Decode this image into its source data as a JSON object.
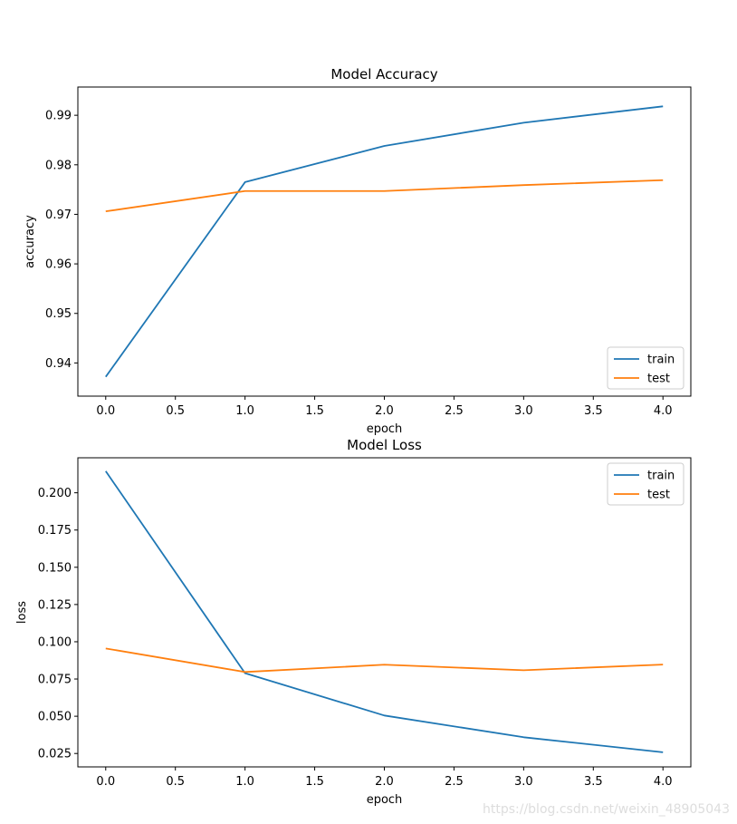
{
  "colors": {
    "train": "#1f77b4",
    "test": "#ff7f0e",
    "axis": "#000000",
    "background": "#ffffff"
  },
  "watermark": "https://blog.csdn.net/weixin_48905043",
  "chart_data": [
    {
      "type": "line",
      "title": "Model Accuracy",
      "xlabel": "epoch",
      "ylabel": "accuracy",
      "x": [
        0,
        1,
        2,
        3,
        4
      ],
      "xlim": [
        -0.2,
        4.2
      ],
      "ylim": [
        0.9333,
        0.9957
      ],
      "xticks": [
        0.0,
        0.5,
        1.0,
        1.5,
        2.0,
        2.5,
        3.0,
        3.5,
        4.0
      ],
      "xtick_labels": [
        "0.0",
        "0.5",
        "1.0",
        "1.5",
        "2.0",
        "2.5",
        "3.0",
        "3.5",
        "4.0"
      ],
      "yticks": [
        0.94,
        0.95,
        0.96,
        0.97,
        0.98,
        0.99
      ],
      "ytick_labels": [
        "0.94",
        "0.95",
        "0.96",
        "0.97",
        "0.98",
        "0.99"
      ],
      "series": [
        {
          "name": "train",
          "values": [
            0.9372,
            0.9765,
            0.9838,
            0.9885,
            0.9918
          ]
        },
        {
          "name": "test",
          "values": [
            0.9706,
            0.9747,
            0.9747,
            0.9759,
            0.9769
          ]
        }
      ],
      "legend": {
        "position": "lower right",
        "entries": [
          "train",
          "test"
        ]
      },
      "grid": false
    },
    {
      "type": "line",
      "title": "Model Loss",
      "xlabel": "epoch",
      "ylabel": "loss",
      "x": [
        0,
        1,
        2,
        3,
        4
      ],
      "xlim": [
        -0.2,
        4.2
      ],
      "ylim": [
        0.016,
        0.2235
      ],
      "xticks": [
        0.0,
        0.5,
        1.0,
        1.5,
        2.0,
        2.5,
        3.0,
        3.5,
        4.0
      ],
      "xtick_labels": [
        "0.0",
        "0.5",
        "1.0",
        "1.5",
        "2.0",
        "2.5",
        "3.0",
        "3.5",
        "4.0"
      ],
      "yticks": [
        0.025,
        0.05,
        0.075,
        0.1,
        0.125,
        0.15,
        0.175,
        0.2
      ],
      "ytick_labels": [
        "0.025",
        "0.050",
        "0.075",
        "0.100",
        "0.125",
        "0.150",
        "0.175",
        "0.200"
      ],
      "series": [
        {
          "name": "train",
          "values": [
            0.2145,
            0.0789,
            0.0505,
            0.0359,
            0.0258
          ]
        },
        {
          "name": "test",
          "values": [
            0.0955,
            0.0797,
            0.0846,
            0.0809,
            0.0847
          ]
        }
      ],
      "legend": {
        "position": "upper right",
        "entries": [
          "train",
          "test"
        ]
      },
      "grid": false
    }
  ]
}
